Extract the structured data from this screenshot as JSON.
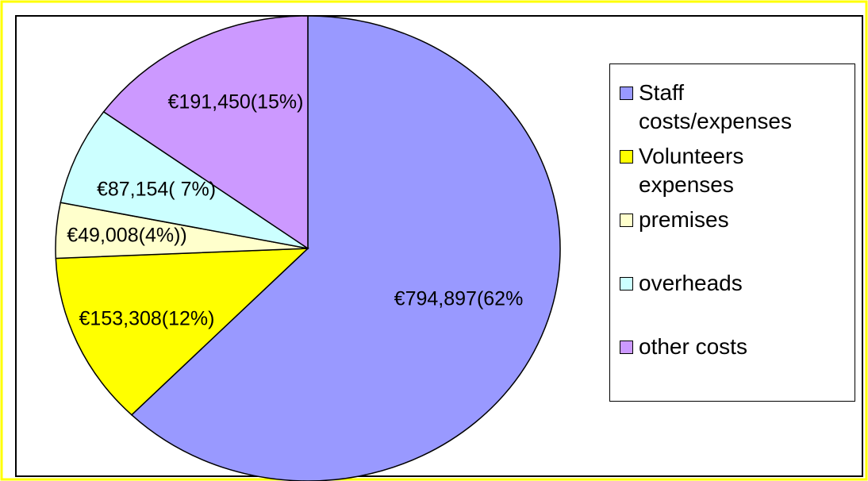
{
  "chart_data": {
    "type": "pie",
    "categories": [
      "Staff costs/expenses",
      "Volunteers expenses",
      "premises",
      "overheads",
      "other costs"
    ],
    "values": [
      794897,
      153308,
      49008,
      87154,
      191450
    ],
    "value_labels": [
      "€794,897(62%",
      "€153,308(12%)",
      "€49,008(4%))",
      "€87,154( 7%)",
      "€191,450(15%)"
    ],
    "colors": [
      "#9999ff",
      "#ffff00",
      "#ffffcc",
      "#ccffff",
      "#cc99ff"
    ],
    "legend": "right"
  }
}
